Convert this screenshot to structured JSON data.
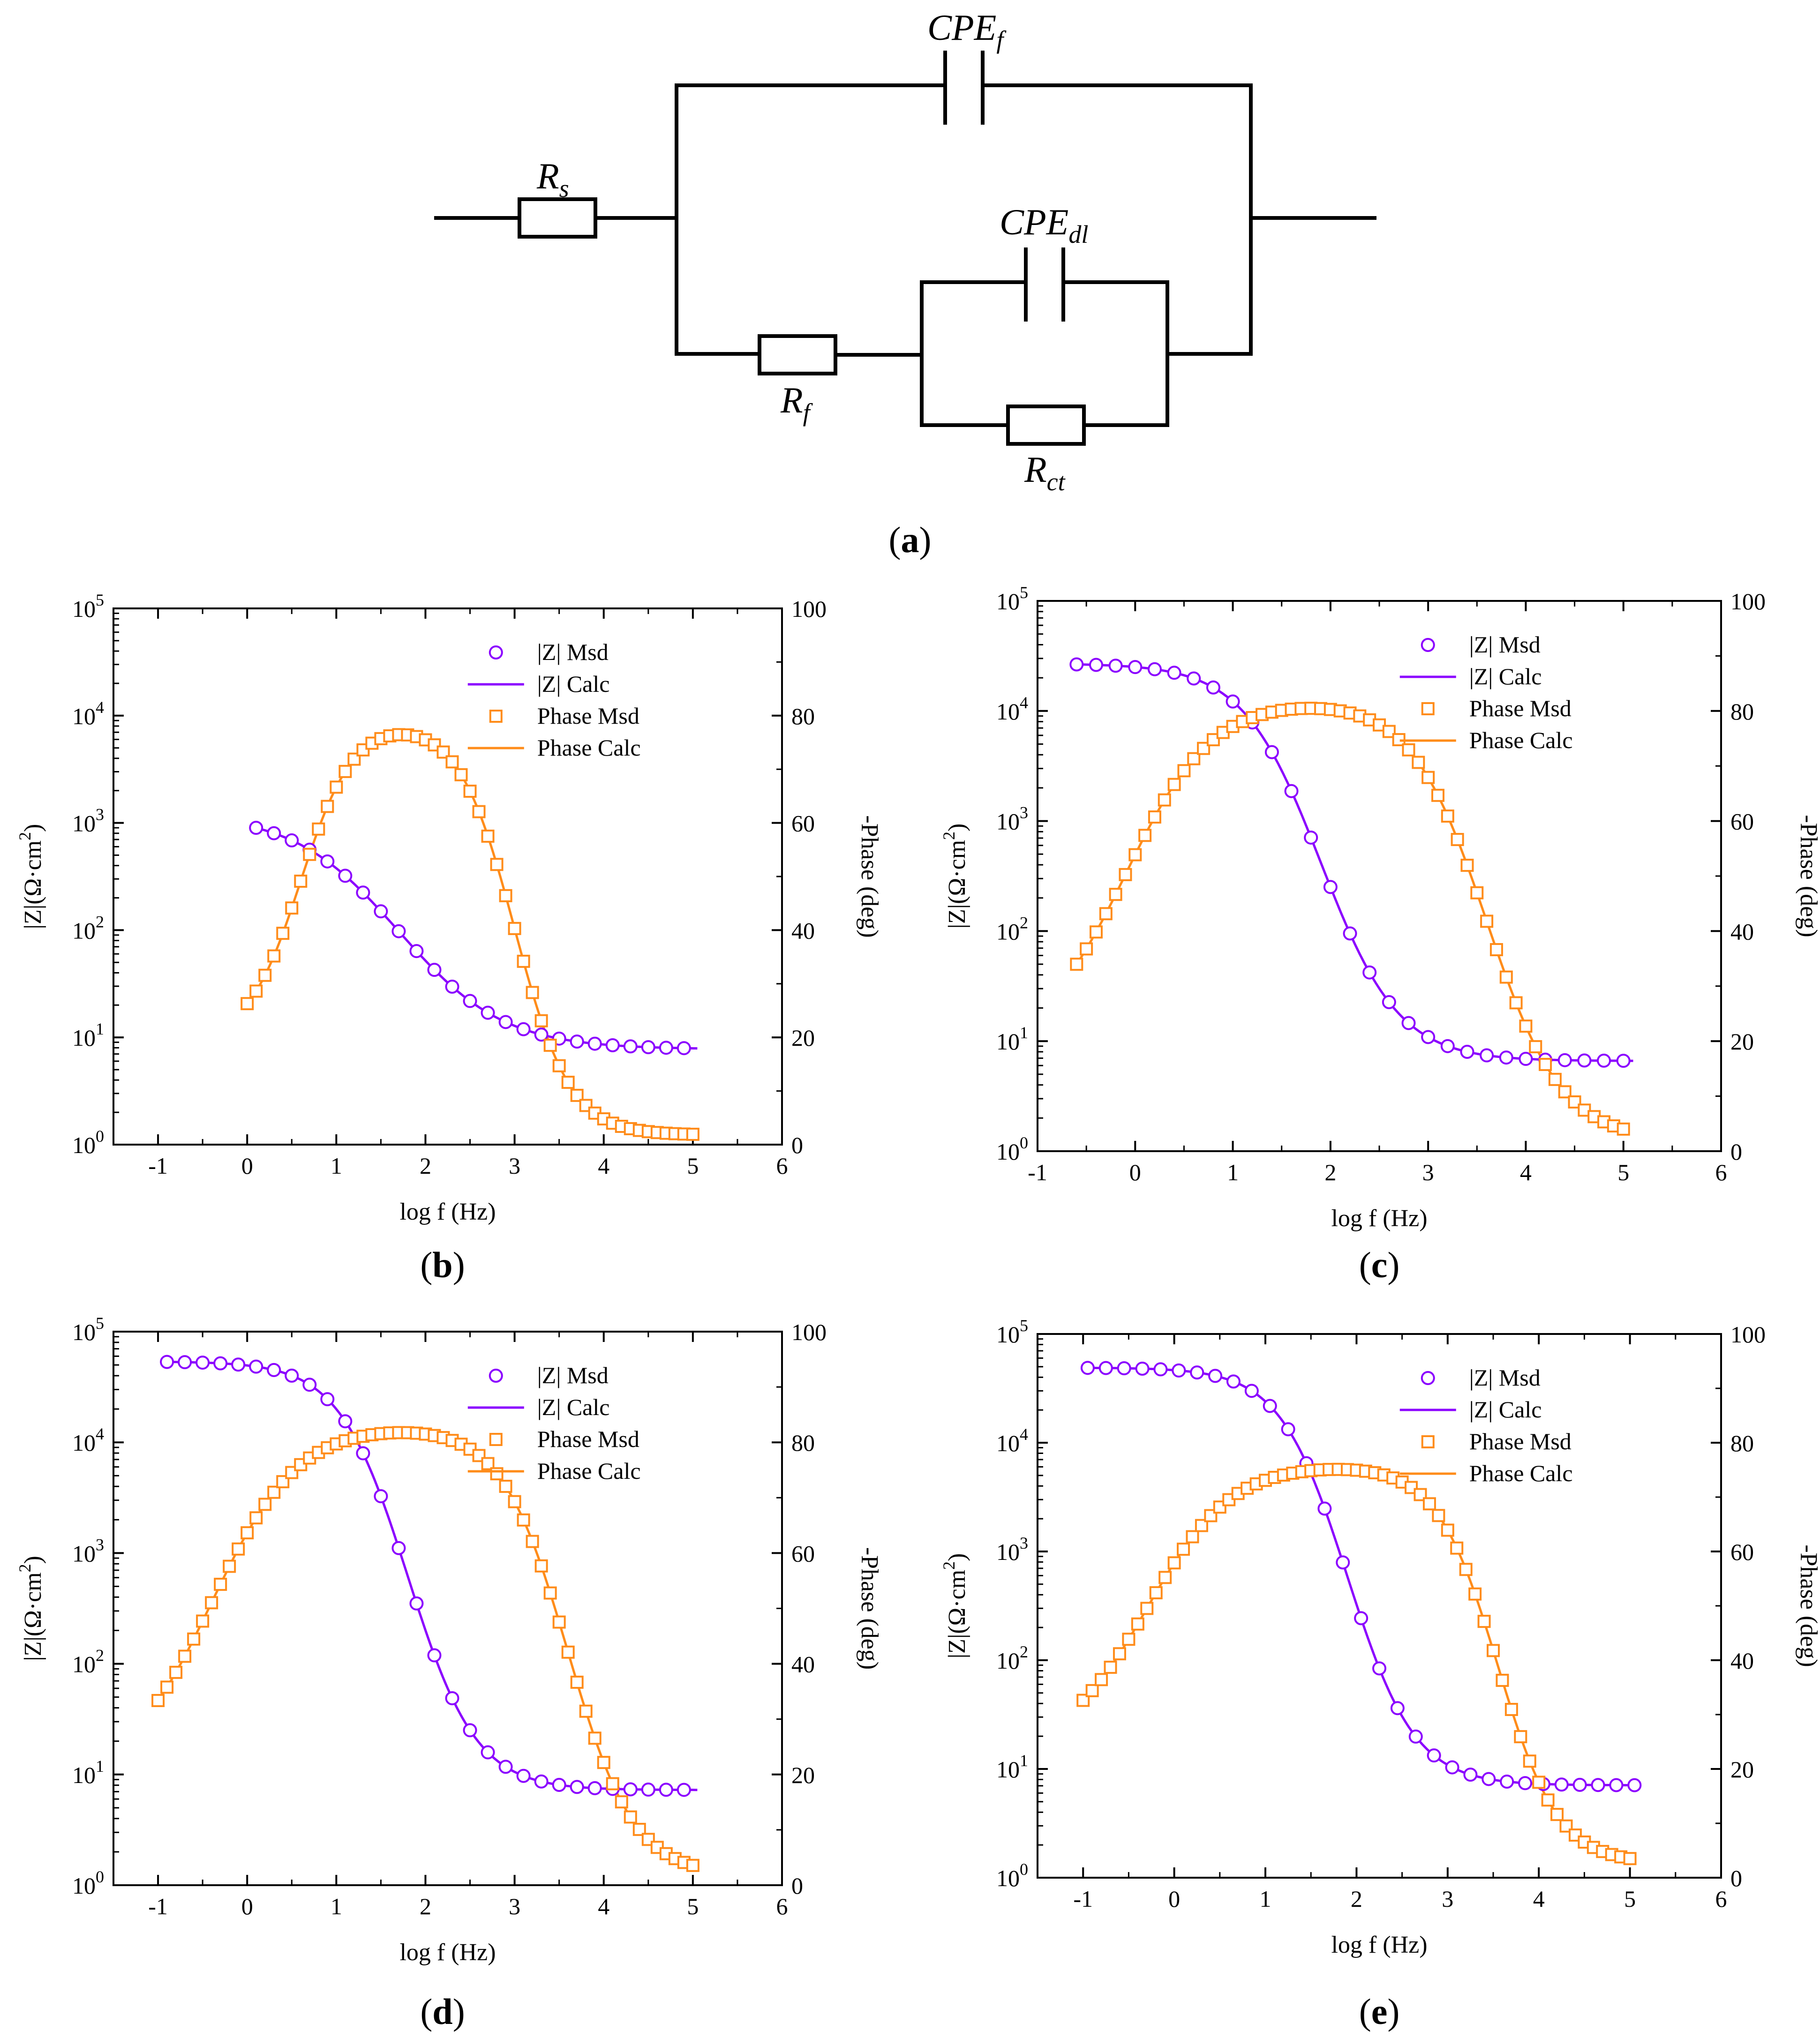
{
  "circuit": {
    "labels": {
      "rs": {
        "main": "R",
        "sub": "s"
      },
      "cpef": {
        "main": "CPE",
        "sub": "f"
      },
      "cpedl": {
        "main": "CPE",
        "sub": "dl"
      },
      "rf": {
        "main": "R",
        "sub": "f"
      },
      "rct": {
        "main": "R",
        "sub": "ct"
      }
    },
    "caption": "a"
  },
  "colors": {
    "impedance": "#8B00FF",
    "phase": "#FF8C1A",
    "axis": "#000000"
  },
  "chart_data": [
    {
      "id": "b",
      "caption": "b",
      "type": "line",
      "xlabel": "log f (Hz)",
      "ylabel_left": {
        "main": "|Z|(Ω·cm",
        "sup": "2",
        "end": ")"
      },
      "ylabel_right": "-Phase (deg)",
      "xlim": [
        -1.5,
        6
      ],
      "xticks": [
        "-1",
        "0",
        "1",
        "2",
        "3",
        "4",
        "5",
        "6"
      ],
      "ylim_left_log10": [
        0,
        5
      ],
      "ylim_right": [
        0,
        100
      ],
      "yticks_right": [
        "0",
        "20",
        "40",
        "60",
        "80",
        "100"
      ],
      "legend": [
        "|Z| Msd",
        "|Z| Calc",
        "Phase Msd",
        "Phase Calc"
      ],
      "model": {
        "mag": {
          "x0": 0.1,
          "x1": 5.05,
          "ymax": 3.29,
          "ymin": 0.89,
          "a": 2.2,
          "xm": 1.7,
          "b": 1.7
        },
        "phase": {
          "x0": 0.0,
          "x1": 5.05,
          "base": 19.5,
          "baseSlope": 3.7,
          "peak": 79,
          "peakX": 1.85,
          "xc1": 0.6,
          "k1": 3.4,
          "xc2": 3.0,
          "k2": 3.2,
          "tailEnd": 1.8
        }
      }
    },
    {
      "id": "c",
      "caption": "c",
      "type": "line",
      "xlabel": "log f (Hz)",
      "ylabel_left": {
        "main": "|Z|(Ω·cm",
        "sup": "2",
        "end": ")"
      },
      "ylabel_right": "-Phase (deg)",
      "xlim": [
        -1,
        6
      ],
      "xticks": [
        "-1",
        "0",
        "1",
        "2",
        "3",
        "4",
        "5",
        "6"
      ],
      "ylim_left_log10": [
        0,
        5
      ],
      "ylim_right": [
        0,
        100
      ],
      "yticks_right": [
        "0",
        "20",
        "40",
        "60",
        "80",
        "100"
      ],
      "legend": [
        "|Z| Msd",
        "|Z| Calc",
        "Phase Msd",
        "Phase Calc"
      ],
      "model": {
        "mag": {
          "x0": -0.6,
          "x1": 5.1,
          "ymax": 4.43,
          "ymin": 0.82,
          "a": 3.61,
          "xm": 1.9,
          "b": 2.5
        },
        "phase": {
          "x0": -0.6,
          "x1": 5.05,
          "base": 19.0,
          "baseSlope": 0,
          "peak": 82,
          "peakX": 1.8,
          "xc1": -0.1,
          "k1": 2.3,
          "xc2": 3.6,
          "k2": 2.6,
          "tailEnd": 2.0
        }
      }
    },
    {
      "id": "d",
      "caption": "d",
      "type": "line",
      "xlabel": "log f (Hz)",
      "ylabel_left": {
        "main": "|Z|(Ω·cm",
        "sup": "2",
        "end": ")"
      },
      "ylabel_right": "-Phase (deg)",
      "xlim": [
        -1.5,
        6
      ],
      "xticks": [
        "-1",
        "0",
        "1",
        "2",
        "3",
        "4",
        "5",
        "6"
      ],
      "ylim_left_log10": [
        0,
        5
      ],
      "ylim_right": [
        0,
        100
      ],
      "yticks_right": [
        "0",
        "20",
        "40",
        "60",
        "80",
        "100"
      ],
      "legend": [
        "|Z| Msd",
        "|Z| Calc",
        "Phase Msd",
        "Phase Calc"
      ],
      "model": {
        "mag": {
          "x0": -0.9,
          "x1": 5.05,
          "ymax": 4.73,
          "ymin": 0.86,
          "a": 3.87,
          "xm": 1.8,
          "b": 2.6
        },
        "phase": {
          "x0": -1.0,
          "x1": 5.05,
          "base": 19.5,
          "baseSlope": 0,
          "peak": 83,
          "peakX": 1.45,
          "xc1": -0.4,
          "k1": 2.1,
          "xc2": 3.6,
          "k2": 2.7,
          "tailEnd": 1.8
        }
      }
    },
    {
      "id": "e",
      "caption": "e",
      "type": "line",
      "xlabel": "log f (Hz)",
      "ylabel_left": {
        "main": "|Z|(Ω·cm",
        "sup": "2",
        "end": ")"
      },
      "ylabel_right": "-Phase (deg)",
      "xlim": [
        -1.5,
        6
      ],
      "xticks": [
        "-1",
        "0",
        "1",
        "2",
        "3",
        "4",
        "5",
        "6"
      ],
      "ylim_left_log10": [
        0,
        5
      ],
      "ylim_right": [
        0,
        100
      ],
      "yticks_right": [
        "0",
        "20",
        "40",
        "60",
        "80",
        "100"
      ],
      "legend": [
        "|Z| Msd",
        "|Z| Calc",
        "Phase Msd",
        "Phase Calc"
      ],
      "model": {
        "mag": {
          "x0": -0.95,
          "x1": 5.08,
          "ymax": 4.69,
          "ymin": 0.85,
          "a": 3.84,
          "xm": 1.9,
          "b": 2.7
        },
        "phase": {
          "x0": -1.0,
          "x1": 5.05,
          "base": 23.5,
          "baseSlope": 0,
          "peak": 76,
          "peakX": 1.55,
          "xc1": -0.3,
          "k1": 2.2,
          "xc2": 3.55,
          "k2": 3.0,
          "tailEnd": 2.6
        }
      }
    }
  ]
}
